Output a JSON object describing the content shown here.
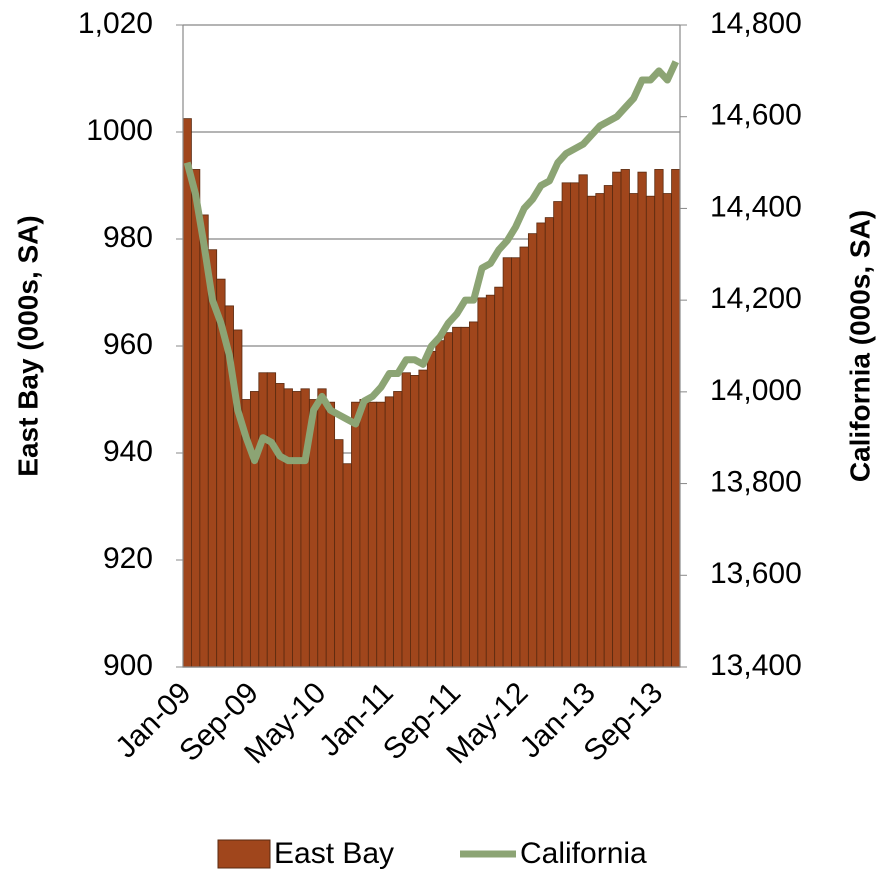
{
  "chart_data": {
    "type": "bar-line",
    "categories": [
      "Jan-09",
      null,
      null,
      null,
      null,
      null,
      null,
      null,
      "Sep-09",
      null,
      null,
      null,
      null,
      null,
      null,
      null,
      "May-10",
      null,
      null,
      null,
      null,
      null,
      null,
      null,
      "Jan-11",
      null,
      null,
      null,
      null,
      null,
      null,
      null,
      "Sep-11",
      null,
      null,
      null,
      null,
      null,
      null,
      null,
      "May-12",
      null,
      null,
      null,
      null,
      null,
      null,
      null,
      "Jan-13",
      null,
      null,
      null,
      null,
      null,
      null,
      null,
      "Sep-13",
      null,
      null
    ],
    "series": [
      {
        "name": "East Bay",
        "color": "#a0461c",
        "type": "bar",
        "values": [
          1002.5,
          993,
          984.5,
          978,
          972.5,
          967.5,
          963,
          950,
          951.5,
          955,
          955,
          953,
          952,
          951.5,
          952,
          950,
          952,
          949.5,
          942.5,
          938,
          949.5,
          950,
          949.5,
          949.5,
          950.5,
          951.5,
          955,
          954.5,
          955.5,
          959,
          961,
          962.5,
          963.5,
          963.5,
          964.5,
          969,
          969.5,
          971,
          976.5,
          976.5,
          978.5,
          981,
          983,
          984,
          987,
          990.5,
          990.5,
          992,
          988,
          988.5,
          990,
          992.5,
          993,
          988.5,
          992.5,
          988,
          993,
          988.5,
          993
        ]
      },
      {
        "name": "California",
        "color": "#8ca474",
        "type": "line",
        "axis": "y2",
        "values": [
          14500,
          14430,
          14320,
          14200,
          14150,
          14080,
          13960,
          13900,
          13850,
          13900,
          13890,
          13860,
          13850,
          13850,
          13850,
          13960,
          13990,
          13960,
          13950,
          13940,
          13930,
          13980,
          13990,
          14010,
          14040,
          14040,
          14070,
          14070,
          14060,
          14100,
          14120,
          14150,
          14170,
          14200,
          14200,
          14270,
          14280,
          14310,
          14330,
          14360,
          14400,
          14420,
          14450,
          14460,
          14500,
          14520,
          14530,
          14540,
          14560,
          14580,
          14590,
          14600,
          14620,
          14640,
          14680,
          14680,
          14700,
          14680,
          14720
        ]
      }
    ],
    "ylabel": "East Bay (000s, SA)",
    "y2label": "California (000s, SA)",
    "ylim": [
      900,
      1020
    ],
    "yticks": [
      900,
      920,
      940,
      960,
      980,
      1000,
      {
        "value": 1020,
        "label": "1,020"
      }
    ],
    "y2lim": [
      13400,
      14800
    ],
    "y2ticks": [
      {
        "value": 13400,
        "label": "13,400"
      },
      {
        "value": 13600,
        "label": "13,600"
      },
      {
        "value": 13800,
        "label": "13,800"
      },
      {
        "value": 14000,
        "label": "14,000"
      },
      {
        "value": 14200,
        "label": "14,200"
      },
      {
        "value": 14400,
        "label": "14,400"
      },
      {
        "value": 14600,
        "label": "14,600"
      },
      {
        "value": 14800,
        "label": "14,800"
      }
    ],
    "grid": true,
    "legend": "bottom"
  }
}
